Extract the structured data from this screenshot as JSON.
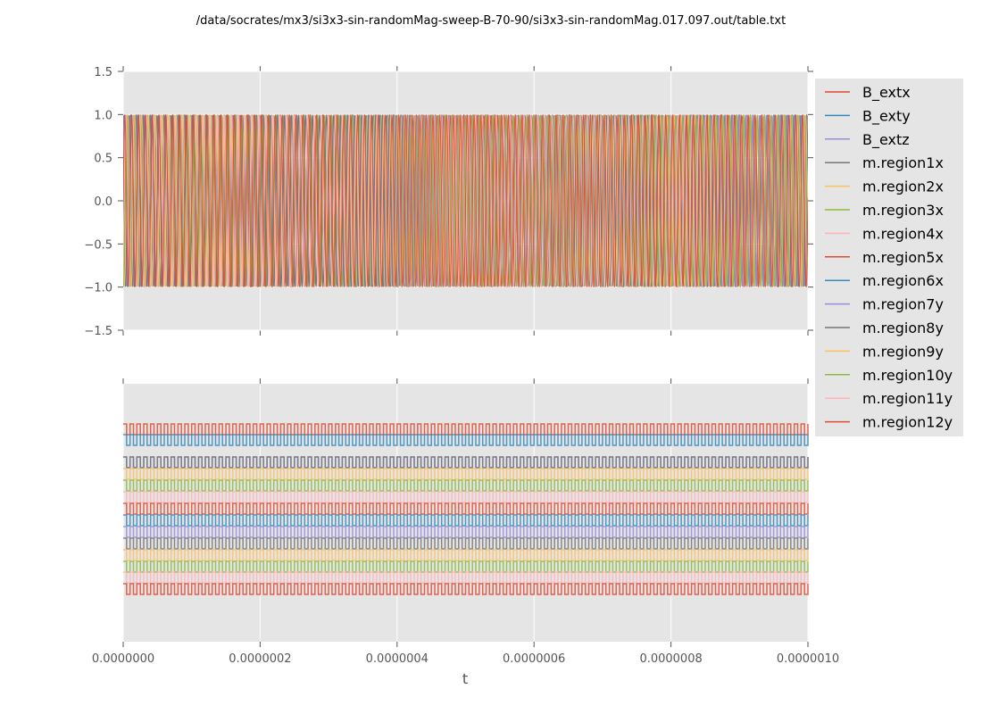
{
  "chart_data": [
    {
      "type": "line",
      "title": "/data/socrates/mx3/si3x3-sin-randomMag-sweep-B-70-90/si3x3-sin-randomMag.017.097.out/table.txt",
      "xlabel": "",
      "ylabel": "",
      "xlim": [
        0,
        1e-06
      ],
      "ylim": [
        -1.5,
        1.5
      ],
      "yticks": [
        "1.5",
        "1.0",
        "0.5",
        "0.0",
        "−0.5",
        "−1.0",
        "−1.5"
      ],
      "ytick_values": [
        1.5,
        1.0,
        0.5,
        0.0,
        -0.5,
        -1.0,
        -1.5
      ],
      "grid": true,
      "description_of_series": "sinusoidal oscillations between -1 and 1, about 100 cycles over the range",
      "amplitude": 1,
      "approx_cycles": 100
    },
    {
      "type": "line",
      "xlabel": "t",
      "xlim": [
        0,
        1e-06
      ],
      "xticks": [
        "0.0000000",
        "0.0000002",
        "0.0000004",
        "0.0000006",
        "0.0000008",
        "0.0000010"
      ],
      "xtick_values": [
        0,
        2e-07,
        4e-07,
        6e-07,
        8e-07,
        1e-06
      ],
      "grid": true,
      "description_of_series": "square waves stacked with vertical offsets, one row per series, about 100 cycles each",
      "approx_cycles": 100
    }
  ],
  "legend": {
    "placement": "right",
    "series": [
      {
        "name": "B_extx",
        "color": "#E24A33"
      },
      {
        "name": "B_exty",
        "color": "#348ABD"
      },
      {
        "name": "B_extz",
        "color": "#988ED5"
      },
      {
        "name": "m.region1x",
        "color": "#777777"
      },
      {
        "name": "m.region2x",
        "color": "#FBC15E"
      },
      {
        "name": "m.region3x",
        "color": "#8EBA42"
      },
      {
        "name": "m.region4x",
        "color": "#FFB5B8"
      },
      {
        "name": "m.region5x",
        "color": "#E24A33"
      },
      {
        "name": "m.region6x",
        "color": "#348ABD"
      },
      {
        "name": "m.region7y",
        "color": "#988ED5"
      },
      {
        "name": "m.region8y",
        "color": "#777777"
      },
      {
        "name": "m.region9y",
        "color": "#FBC15E"
      },
      {
        "name": "m.region10y",
        "color": "#8EBA42"
      },
      {
        "name": "m.region11y",
        "color": "#FFB5B8"
      },
      {
        "name": "m.region12y",
        "color": "#E24A33"
      }
    ]
  },
  "colors": {
    "axes_bg": "#E5E5E5",
    "grid": "#FFFFFF",
    "tick_text": "#555555"
  }
}
